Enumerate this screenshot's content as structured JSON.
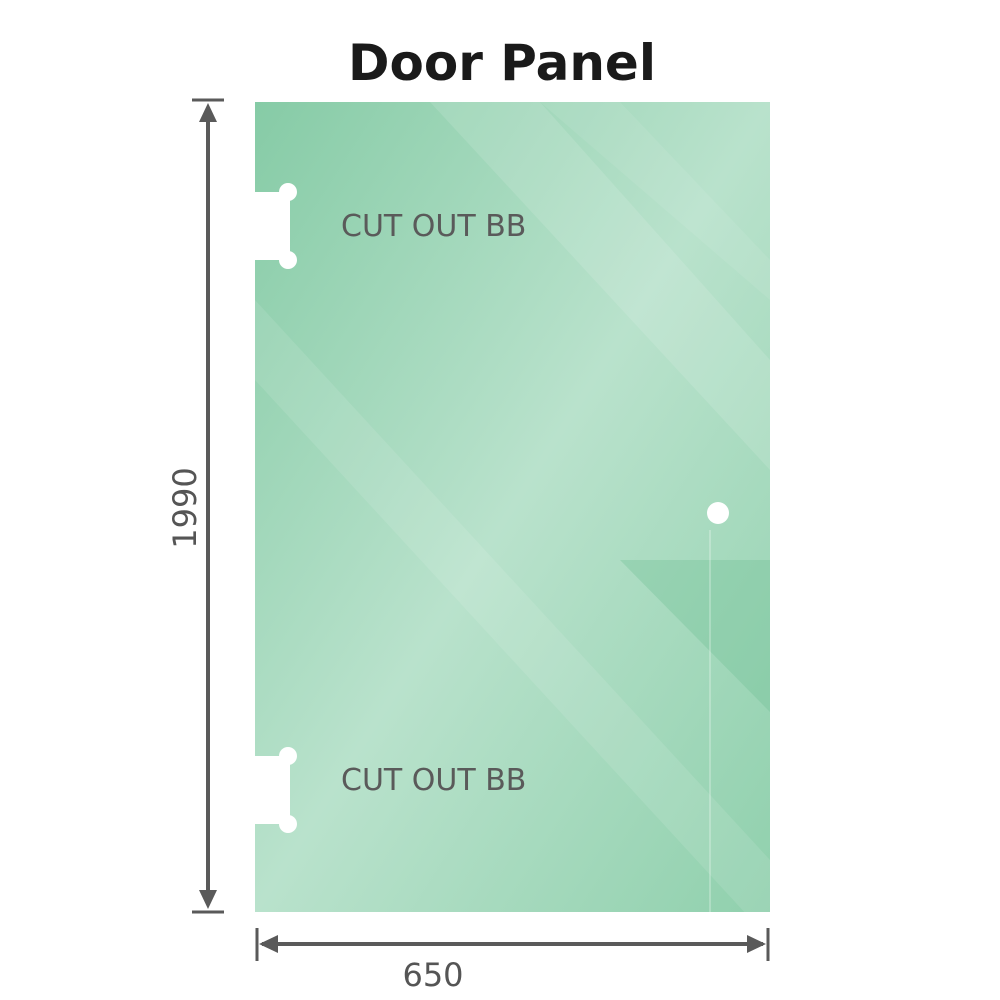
{
  "title": "Door Panel",
  "cutout_label_top": "CUT OUT BB",
  "cutout_label_bottom": "CUT OUT BB",
  "height_dimension": "1990",
  "width_dimension": "650",
  "colors": {
    "glass": "#86cba6",
    "glass_light": "#bde5cf",
    "dimension_line": "#5a5a5a"
  }
}
